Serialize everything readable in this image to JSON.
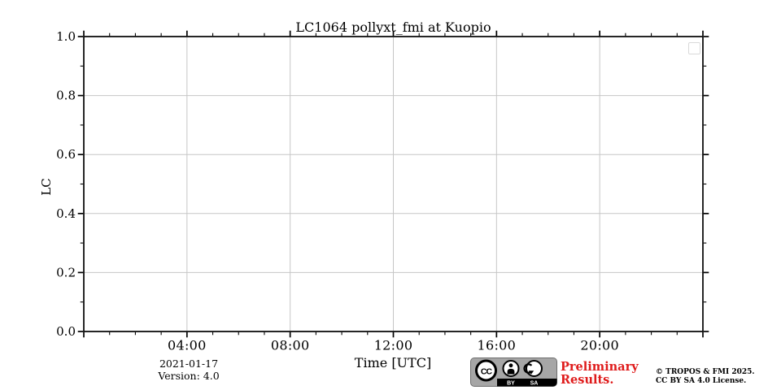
{
  "chart_data": {
    "type": "line",
    "title": "LC1064 pollyxt_fmi at Kuopio",
    "xlabel": "Time [UTC]",
    "ylabel": "LC",
    "xlim_hours": [
      0,
      24
    ],
    "ylim": [
      0.0,
      1.0
    ],
    "x_major_ticks": [
      {
        "hour": 0,
        "label": ""
      },
      {
        "hour": 4,
        "label": "04:00"
      },
      {
        "hour": 8,
        "label": "08:00"
      },
      {
        "hour": 12,
        "label": "12:00"
      },
      {
        "hour": 16,
        "label": "16:00"
      },
      {
        "hour": 20,
        "label": "20:00"
      },
      {
        "hour": 24,
        "label": ""
      }
    ],
    "x_minor_step_hours": 1,
    "y_major_ticks": [
      {
        "value": 0.0,
        "label": "0.0"
      },
      {
        "value": 0.2,
        "label": "0.2"
      },
      {
        "value": 0.4,
        "label": "0.4"
      },
      {
        "value": 0.6,
        "label": "0.6"
      },
      {
        "value": 0.8,
        "label": "0.8"
      },
      {
        "value": 1.0,
        "label": "1.0"
      }
    ],
    "y_minor_step": 0.1,
    "grid": true,
    "series": [],
    "legend": {
      "visible": true,
      "entries": []
    }
  },
  "colors": {
    "spine": "#000000",
    "grid": "#c6c6c6",
    "text": "#000000",
    "preliminary_red": "#df1b1b",
    "badge_bg": "#a6a6a6",
    "badge_border": "#6e6e6e",
    "badge_strip": "#000000"
  },
  "footer": {
    "date": "2021-01-17",
    "version": "Version: 4.0",
    "preliminary": [
      "Preliminary",
      "Results."
    ],
    "copyright": [
      "© TROPOS & FMI 2025.",
      "CC BY SA 4.0 License."
    ],
    "badge": {
      "name": "Creative Commons BY-SA license badge",
      "cc_label": "CC",
      "by_label": "BY",
      "sa_label": "SA"
    }
  }
}
